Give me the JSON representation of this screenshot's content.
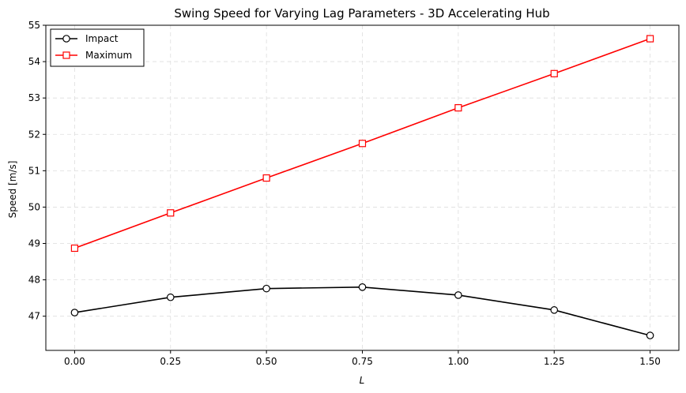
{
  "chart_data": {
    "type": "line",
    "title": "Swing Speed for Varying Lag Parameters - 3D Accelerating Hub",
    "xlabel": "L",
    "ylabel": "Speed [m/s]",
    "x": [
      0.0,
      0.25,
      0.5,
      0.75,
      1.0,
      1.25,
      1.5
    ],
    "x_tick_labels": [
      "0.00",
      "0.25",
      "0.50",
      "0.75",
      "1.00",
      "1.25",
      "1.50"
    ],
    "x_ticks": [
      0.0,
      0.25,
      0.5,
      0.75,
      1.0,
      1.25,
      1.5
    ],
    "y_ticks": [
      47,
      48,
      49,
      50,
      51,
      52,
      53,
      54,
      55
    ],
    "y_tick_labels": [
      "47",
      "48",
      "49",
      "50",
      "51",
      "52",
      "53",
      "54",
      "55"
    ],
    "xlim": [
      -0.075,
      1.575
    ],
    "ylim": [
      46.06,
      55.0
    ],
    "grid": true,
    "legend_position": "top-left",
    "series": [
      {
        "name": "Impact",
        "values": [
          47.1,
          47.52,
          47.76,
          47.8,
          47.58,
          47.17,
          46.47
        ],
        "color": "#000000",
        "marker": "circle"
      },
      {
        "name": "Maximum",
        "values": [
          48.87,
          49.84,
          50.8,
          51.75,
          52.73,
          53.67,
          54.63
        ],
        "color": "#ff0000",
        "marker": "square"
      }
    ]
  }
}
